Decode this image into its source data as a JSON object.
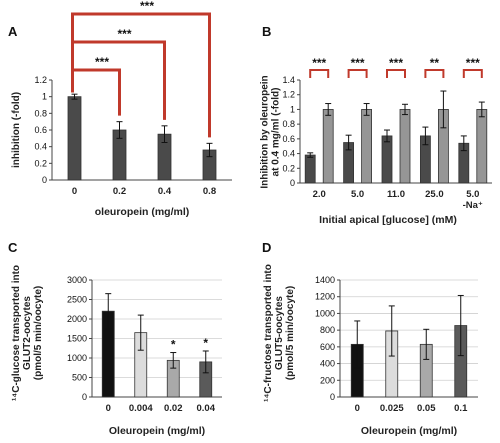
{
  "colors": {
    "dark": "#4a4a4a",
    "light": "#969696",
    "bracket": "#c0392b",
    "c_bars": [
      "#111111",
      "#dcdcdc",
      "#a9a9a9",
      "#5a5a5a"
    ],
    "d_bars": [
      "#111111",
      "#dcdcdc",
      "#a9a9a9",
      "#5a5a5a"
    ]
  },
  "chart_data": [
    {
      "panel": "A",
      "type": "bar",
      "categories": [
        "0",
        "0.2",
        "0.4",
        "0.8"
      ],
      "values": [
        1.0,
        0.6,
        0.55,
        0.36
      ],
      "errors": [
        0.03,
        0.1,
        0.1,
        0.08
      ],
      "ylabel": "inhibition (-fold)",
      "xlabel": "oleuropein (mg/ml)",
      "ylim": [
        0,
        1.2
      ],
      "yticks": [
        "0",
        "0.2",
        "0.4",
        "0.6",
        "0.8",
        "1",
        "1.2"
      ],
      "significance": [
        "***",
        "***",
        "***"
      ],
      "grid": false
    },
    {
      "panel": "B",
      "type": "bar",
      "categories": [
        "2.0",
        "5.0",
        "11.0",
        "25.0",
        "5.0"
      ],
      "category_sublabels": [
        "",
        "",
        "",
        "",
        "-Na⁺"
      ],
      "series": [
        {
          "values": [
            0.38,
            0.55,
            0.64,
            0.64,
            0.54
          ],
          "errors": [
            0.03,
            0.1,
            0.08,
            0.12,
            0.1
          ]
        },
        {
          "values": [
            1.0,
            1.0,
            1.0,
            1.0,
            1.0
          ],
          "errors": [
            0.08,
            0.08,
            0.07,
            0.25,
            0.1
          ]
        }
      ],
      "ylabel_lines": [
        "Inhibition by oleuropein",
        "at 0.4 mg/ml (-fold)"
      ],
      "xlabel": "Initial apical [glucose] (mM)",
      "ylim": [
        0,
        1.4
      ],
      "yticks": [
        "0",
        "0.2",
        "0.4",
        "0.6",
        "0.8",
        "1",
        "1.2",
        "1.4"
      ],
      "significance": [
        "***",
        "***",
        "***",
        "**",
        "***"
      ],
      "grid": false
    },
    {
      "panel": "C",
      "type": "bar",
      "categories": [
        "0",
        "0.004",
        "0.02",
        "0.04"
      ],
      "values": [
        2200,
        1650,
        940,
        900
      ],
      "errors": [
        450,
        450,
        200,
        280
      ],
      "ylabel_lines": [
        "¹⁴C-glucose transported into",
        "GLUT2-oocytes",
        "(pmol/5 min/oocyte)"
      ],
      "xlabel": "Oleuropein (mg/ml)",
      "ylim": [
        0,
        3000
      ],
      "yticks": [
        "0",
        "500",
        "1000",
        "1500",
        "2000",
        "2500",
        "3000"
      ],
      "significance": [
        "",
        "",
        "*",
        "*"
      ],
      "grid": true
    },
    {
      "panel": "D",
      "type": "bar",
      "categories": [
        "0",
        "0.025",
        "0.05",
        "0.1"
      ],
      "values": [
        630,
        790,
        630,
        855
      ],
      "errors": [
        280,
        300,
        180,
        360
      ],
      "ylabel_lines": [
        "¹⁴C-fructose transported into",
        "GLUT5-oocytes",
        "(pmol/5 min/oocyte)"
      ],
      "xlabel": "Oleuropein (mg/ml)",
      "ylim": [
        0,
        1400
      ],
      "yticks": [
        "0",
        "200",
        "400",
        "600",
        "800",
        "1000",
        "1200",
        "1400"
      ],
      "significance": [
        "",
        "",
        "",
        ""
      ],
      "grid": true
    }
  ]
}
